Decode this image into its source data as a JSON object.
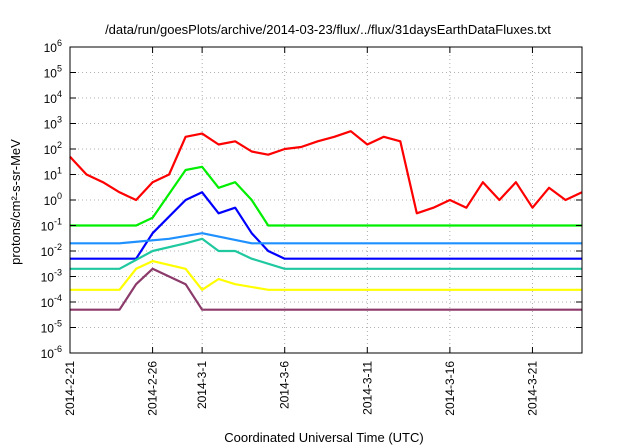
{
  "chart_data": {
    "type": "line",
    "title": "/data/run/goesPlots/archive/2014-03-23/flux/../flux/31daysEarthDataFluxes.txt",
    "xlabel": "Coordinated Universal Time (UTC)",
    "ylabel": "protons/cm²-s-sr-MeV",
    "yscale": "log",
    "ylim_exponents": [
      -6,
      6
    ],
    "ytick_labels": [
      {
        "base": "10",
        "exp": "-6"
      },
      {
        "base": "10",
        "exp": "-5"
      },
      {
        "base": "10",
        "exp": "-4"
      },
      {
        "base": "10",
        "exp": "-3"
      },
      {
        "base": "10",
        "exp": "-2"
      },
      {
        "base": "10",
        "exp": "-1"
      },
      {
        "base": "10",
        "exp": "0"
      },
      {
        "base": "10",
        "exp": "1"
      },
      {
        "base": "10",
        "exp": "2"
      },
      {
        "base": "10",
        "exp": "3"
      },
      {
        "base": "10",
        "exp": "4"
      },
      {
        "base": "10",
        "exp": "5"
      },
      {
        "base": "10",
        "exp": "6"
      }
    ],
    "xtick_labels": [
      "2014-2-21",
      "2014-2-26",
      "2014-3-1",
      "2014-3-6",
      "2014-3-11",
      "2014-3-16",
      "2014-3-21"
    ],
    "xtick_dates": [
      "2014-02-21",
      "2014-02-26",
      "2014-03-01",
      "2014-03-06",
      "2014-03-11",
      "2014-03-16",
      "2014-03-21"
    ],
    "xlim": [
      "2014-02-21",
      "2014-03-24"
    ],
    "grid": true,
    "legend": "none",
    "series": [
      {
        "color": "#ff0000",
        "x": [
          "2014-02-21",
          "2014-02-22",
          "2014-02-23",
          "2014-02-24",
          "2014-02-25",
          "2014-02-26",
          "2014-02-27",
          "2014-02-28",
          "2014-03-01",
          "2014-03-02",
          "2014-03-03",
          "2014-03-04",
          "2014-03-05",
          "2014-03-06",
          "2014-03-07",
          "2014-03-08",
          "2014-03-09",
          "2014-03-10",
          "2014-03-11",
          "2014-03-12",
          "2014-03-13",
          "2014-03-14",
          "2014-03-15",
          "2014-03-16",
          "2014-03-17",
          "2014-03-18",
          "2014-03-19",
          "2014-03-20",
          "2014-03-21",
          "2014-03-22",
          "2014-03-23",
          "2014-03-24"
        ],
        "values": [
          50,
          10,
          5,
          2,
          1,
          5,
          10,
          300,
          400,
          150,
          200,
          80,
          60,
          100,
          120,
          200,
          300,
          500,
          150,
          300,
          200,
          0.3,
          0.5,
          1,
          0.5,
          5,
          1,
          5,
          0.5,
          3,
          1,
          2
        ]
      },
      {
        "color": "#00ee00",
        "x": [
          "2014-02-21",
          "2014-02-23",
          "2014-02-25",
          "2014-02-26",
          "2014-02-28",
          "2014-03-01",
          "2014-03-02",
          "2014-03-03",
          "2014-03-04",
          "2014-03-05",
          "2014-03-06",
          "2014-03-10",
          "2014-03-15",
          "2014-03-20",
          "2014-03-24"
        ],
        "values": [
          0.1,
          0.1,
          0.1,
          0.2,
          15,
          20,
          3,
          5,
          1,
          0.1,
          0.1,
          0.1,
          0.1,
          0.1,
          0.1
        ]
      },
      {
        "color": "#0000ff",
        "x": [
          "2014-02-21",
          "2014-02-23",
          "2014-02-25",
          "2014-02-26",
          "2014-02-28",
          "2014-03-01",
          "2014-03-02",
          "2014-03-03",
          "2014-03-04",
          "2014-03-05",
          "2014-03-06",
          "2014-03-10",
          "2014-03-15",
          "2014-03-20",
          "2014-03-24"
        ],
        "values": [
          0.005,
          0.005,
          0.005,
          0.05,
          1,
          2,
          0.3,
          0.5,
          0.05,
          0.01,
          0.005,
          0.005,
          0.005,
          0.005,
          0.005
        ]
      },
      {
        "color": "#1e90ff",
        "x": [
          "2014-02-21",
          "2014-02-24",
          "2014-02-27",
          "2014-03-01",
          "2014-03-04",
          "2014-03-08",
          "2014-03-12",
          "2014-03-16",
          "2014-03-20",
          "2014-03-24"
        ],
        "values": [
          0.02,
          0.02,
          0.03,
          0.05,
          0.02,
          0.02,
          0.02,
          0.02,
          0.02,
          0.02
        ]
      },
      {
        "color": "#20c8a0",
        "x": [
          "2014-02-21",
          "2014-02-24",
          "2014-02-26",
          "2014-02-28",
          "2014-03-01",
          "2014-03-02",
          "2014-03-03",
          "2014-03-04",
          "2014-03-06",
          "2014-03-10",
          "2014-03-15",
          "2014-03-20",
          "2014-03-24"
        ],
        "values": [
          0.002,
          0.002,
          0.01,
          0.02,
          0.03,
          0.01,
          0.01,
          0.005,
          0.002,
          0.002,
          0.002,
          0.002,
          0.002
        ]
      },
      {
        "color": "#ffff00",
        "x": [
          "2014-02-21",
          "2014-02-24",
          "2014-02-25",
          "2014-02-26",
          "2014-02-28",
          "2014-03-01",
          "2014-03-02",
          "2014-03-03",
          "2014-03-05",
          "2014-03-10",
          "2014-03-15",
          "2014-03-20",
          "2014-03-24"
        ],
        "values": [
          0.0003,
          0.0003,
          0.002,
          0.004,
          0.002,
          0.0003,
          0.0008,
          0.0005,
          0.0003,
          0.0003,
          0.0003,
          0.0003,
          0.0003
        ]
      },
      {
        "color": "#8b3a6a",
        "x": [
          "2014-02-21",
          "2014-02-24",
          "2014-02-25",
          "2014-02-26",
          "2014-02-28",
          "2014-03-01",
          "2014-03-02",
          "2014-03-05",
          "2014-03-10",
          "2014-03-15",
          "2014-03-20",
          "2014-03-24"
        ],
        "values": [
          5e-05,
          5e-05,
          0.0005,
          0.002,
          0.0005,
          5e-05,
          5e-05,
          5e-05,
          5e-05,
          5e-05,
          5e-05,
          5e-05
        ]
      }
    ]
  }
}
